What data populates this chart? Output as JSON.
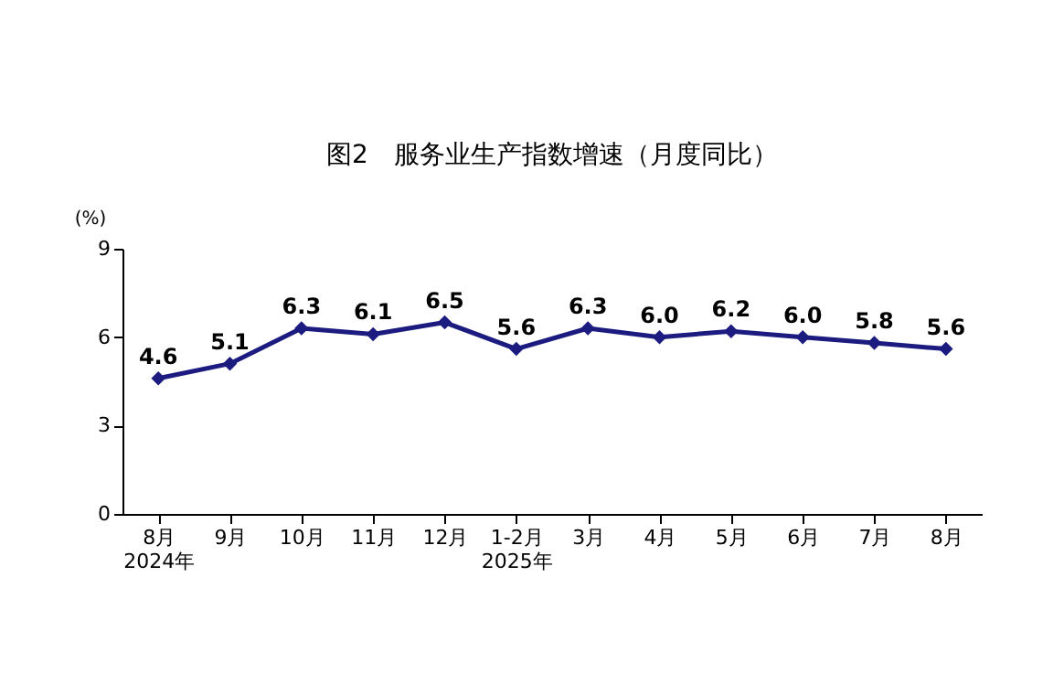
{
  "chart_data": {
    "type": "line",
    "title": "图2　服务业生产指数增速（月度同比）",
    "ylabel": "(%)",
    "categories": [
      "8月\n2024年",
      "9月",
      "10月",
      "11月",
      "12月",
      "1-2月\n2025年",
      "3月",
      "4月",
      "5月",
      "6月",
      "7月",
      "8月"
    ],
    "series": [
      {
        "color": "#1b1b80",
        "values": [
          4.6,
          5.1,
          6.3,
          6.1,
          6.5,
          5.6,
          6.3,
          6.0,
          6.2,
          6.0,
          5.8,
          5.6
        ],
        "value_labels": [
          "4.6",
          "5.1",
          "6.3",
          "6.1",
          "6.5",
          "5.6",
          "6.3",
          "6.0",
          "6.2",
          "6.0",
          "5.8",
          "5.6"
        ]
      }
    ],
    "ylim": [
      0,
      9
    ],
    "yticks": [
      0,
      3,
      6,
      9
    ],
    "grid": false,
    "marker": "diamond",
    "line_style": "solid"
  }
}
